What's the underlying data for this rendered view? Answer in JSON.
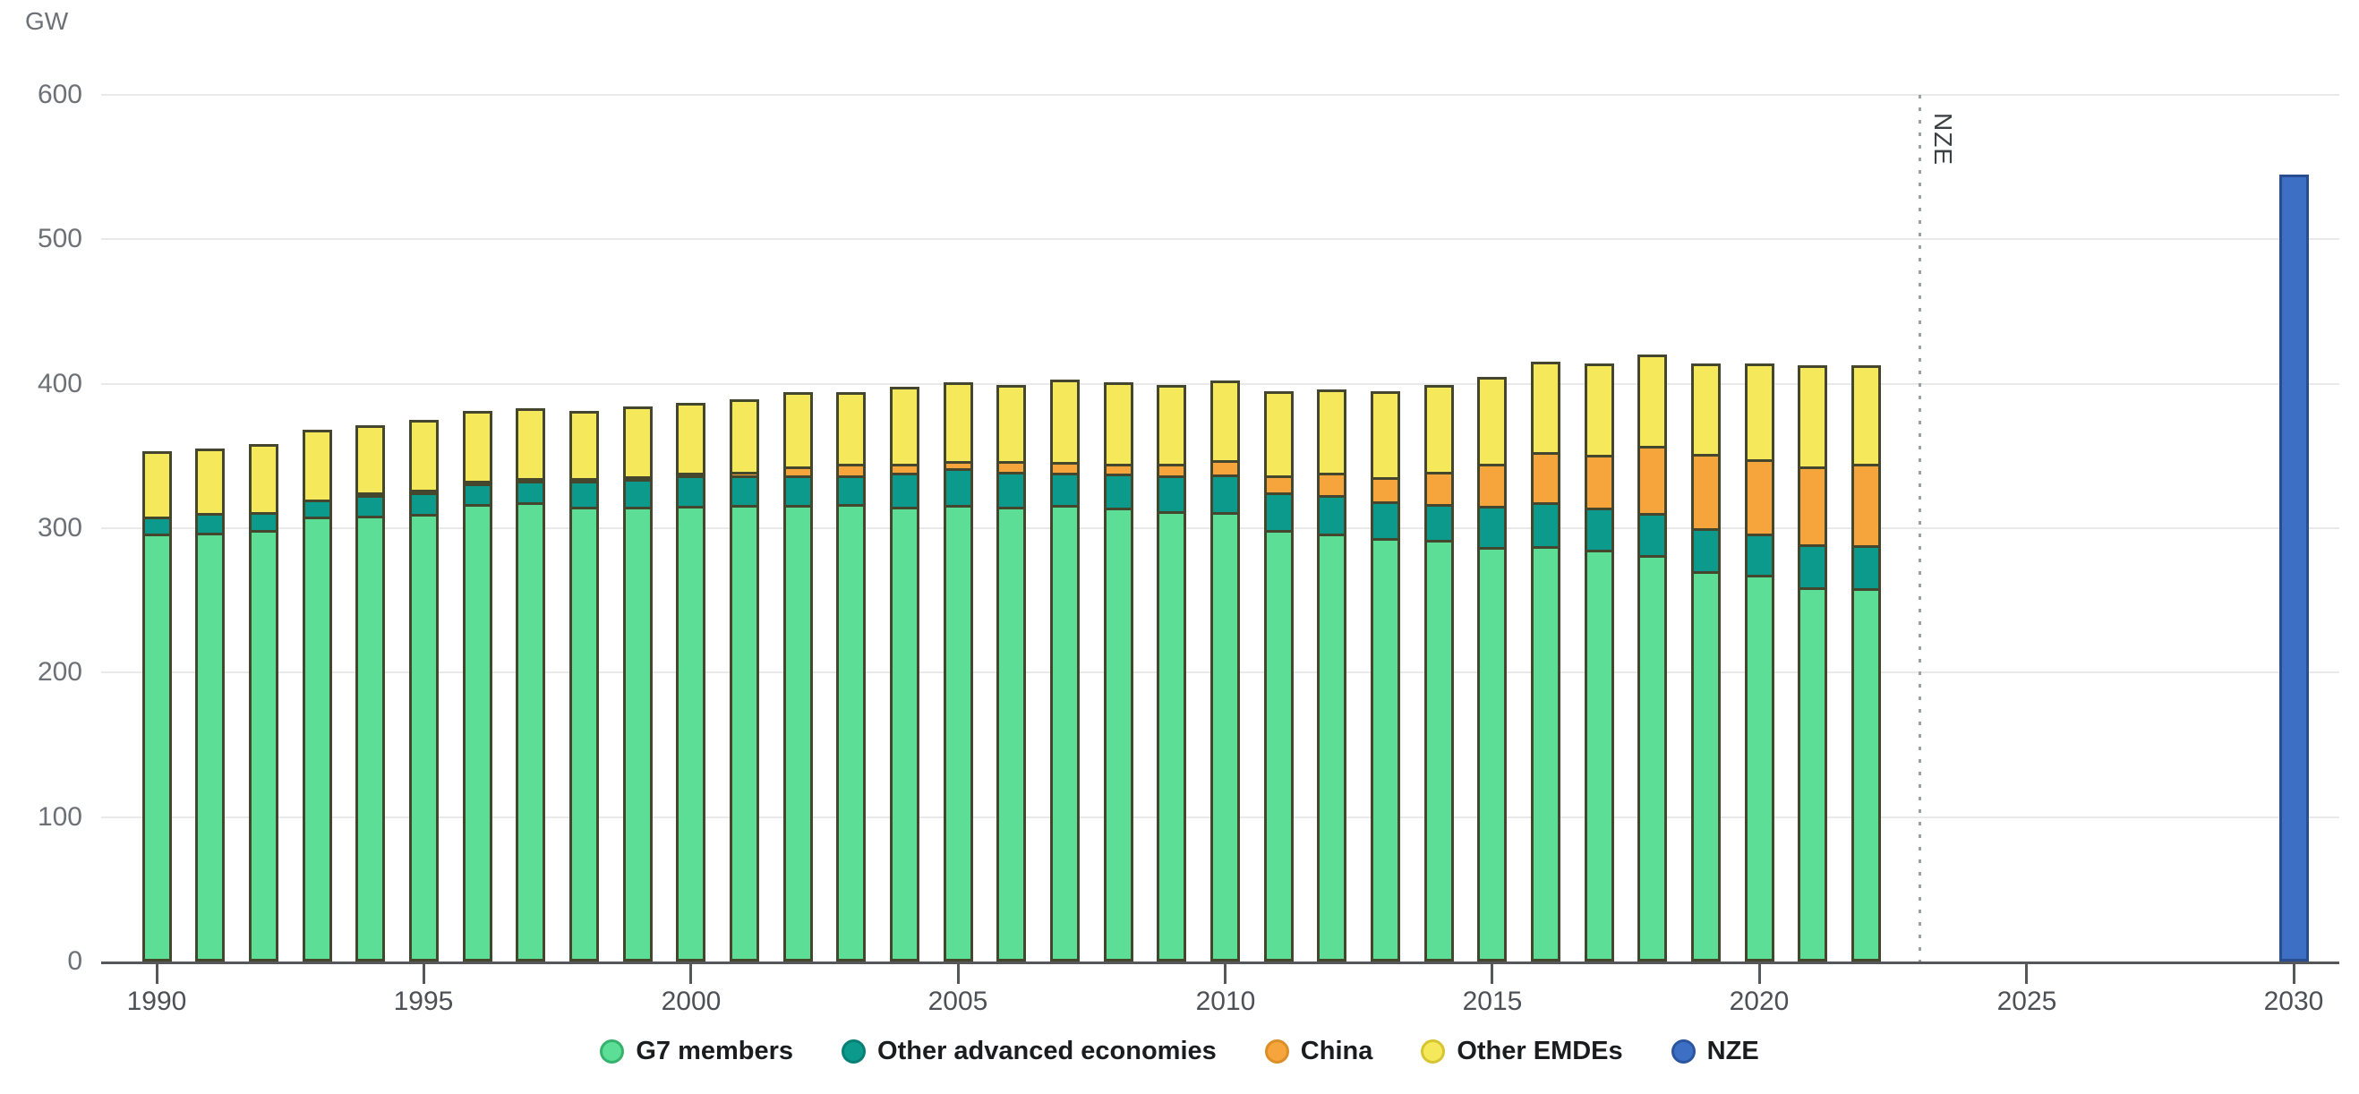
{
  "labels": {
    "unit": "GW",
    "nze_divider": "NZE"
  },
  "colors": {
    "g7": "#5CDE97",
    "other_advanced": "#0C9A8C",
    "china": "#F6A53D",
    "other_emdes": "#F5E95B",
    "nze": "#3D6FC4",
    "bar_outline": "#45462E",
    "nze_outline": "#2A4D8F",
    "gridline": "#E9E9E9",
    "axis": "#55575B",
    "axis_text": "#4D5156",
    "y_text": "#6D7176",
    "divider_dots": "#9AA0A6"
  },
  "legend": [
    {
      "label": "G7 members",
      "color": "#5CDE97",
      "ring": "#36B26D"
    },
    {
      "label": "Other advanced economies",
      "color": "#0C9A8C",
      "ring": "#087F74"
    },
    {
      "label": "China",
      "color": "#F6A53D",
      "ring": "#DB8F27"
    },
    {
      "label": "Other EMDEs",
      "color": "#F5E95B",
      "ring": "#D6C430"
    },
    {
      "label": "NZE",
      "color": "#3D6FC4",
      "ring": "#2C55A0"
    }
  ],
  "chart_data": {
    "type": "bar",
    "stacked": true,
    "title": "",
    "ylabel": "GW",
    "xlabel": "",
    "ylim": [
      0,
      600
    ],
    "y_ticks": [
      0,
      100,
      200,
      300,
      400,
      500,
      600
    ],
    "x_tick_labels": [
      "1990",
      "1995",
      "2000",
      "2005",
      "2010",
      "2015",
      "2020",
      "2025",
      "2030"
    ],
    "grid": true,
    "legend_position": "bottom",
    "categories": [
      1990,
      1991,
      1992,
      1993,
      1994,
      1995,
      1996,
      1997,
      1998,
      1999,
      2000,
      2001,
      2002,
      2003,
      2004,
      2005,
      2006,
      2007,
      2008,
      2009,
      2010,
      2011,
      2012,
      2013,
      2014,
      2015,
      2016,
      2017,
      2018,
      2019,
      2020,
      2021,
      2022,
      2030
    ],
    "series": [
      {
        "name": "G7 members",
        "color": "#5CDE97",
        "values": [
          297,
          298,
          300,
          309,
          310,
          311,
          318,
          319,
          316,
          316,
          317,
          317,
          317,
          318,
          316,
          317,
          316,
          317,
          315,
          313,
          312,
          300,
          297,
          294,
          293,
          288,
          288,
          286,
          282,
          271,
          268,
          260,
          259,
          0
        ]
      },
      {
        "name": "Other advanced economies",
        "color": "#0C9A8C",
        "values": [
          12,
          14,
          12,
          12,
          14,
          15,
          14,
          15,
          18,
          19,
          21,
          21,
          21,
          20,
          24,
          26,
          24,
          23,
          24,
          25,
          26,
          26,
          27,
          26,
          25,
          29,
          31,
          29,
          29,
          30,
          29,
          30,
          30,
          0
        ]
      },
      {
        "name": "China",
        "color": "#F6A53D",
        "values": [
          0,
          0,
          0,
          0,
          2,
          2,
          2,
          2,
          2,
          2,
          2,
          2,
          6,
          8,
          6,
          5,
          8,
          7,
          7,
          8,
          10,
          12,
          16,
          17,
          22,
          29,
          35,
          37,
          47,
          52,
          52,
          54,
          57,
          0
        ]
      },
      {
        "name": "Other EMDEs",
        "color": "#F5E95B",
        "values": [
          44,
          43,
          46,
          47,
          45,
          47,
          47,
          47,
          45,
          47,
          47,
          49,
          50,
          48,
          52,
          53,
          51,
          56,
          55,
          53,
          54,
          57,
          56,
          58,
          59,
          59,
          61,
          62,
          62,
          61,
          65,
          69,
          67,
          0
        ]
      },
      {
        "name": "NZE",
        "color": "#3D6FC4",
        "values": [
          0,
          0,
          0,
          0,
          0,
          0,
          0,
          0,
          0,
          0,
          0,
          0,
          0,
          0,
          0,
          0,
          0,
          0,
          0,
          0,
          0,
          0,
          0,
          0,
          0,
          0,
          0,
          0,
          0,
          0,
          0,
          0,
          0,
          545
        ]
      }
    ],
    "annotations": [
      {
        "text": "NZE",
        "type": "vline-dotted",
        "x_year": 2023
      }
    ]
  }
}
